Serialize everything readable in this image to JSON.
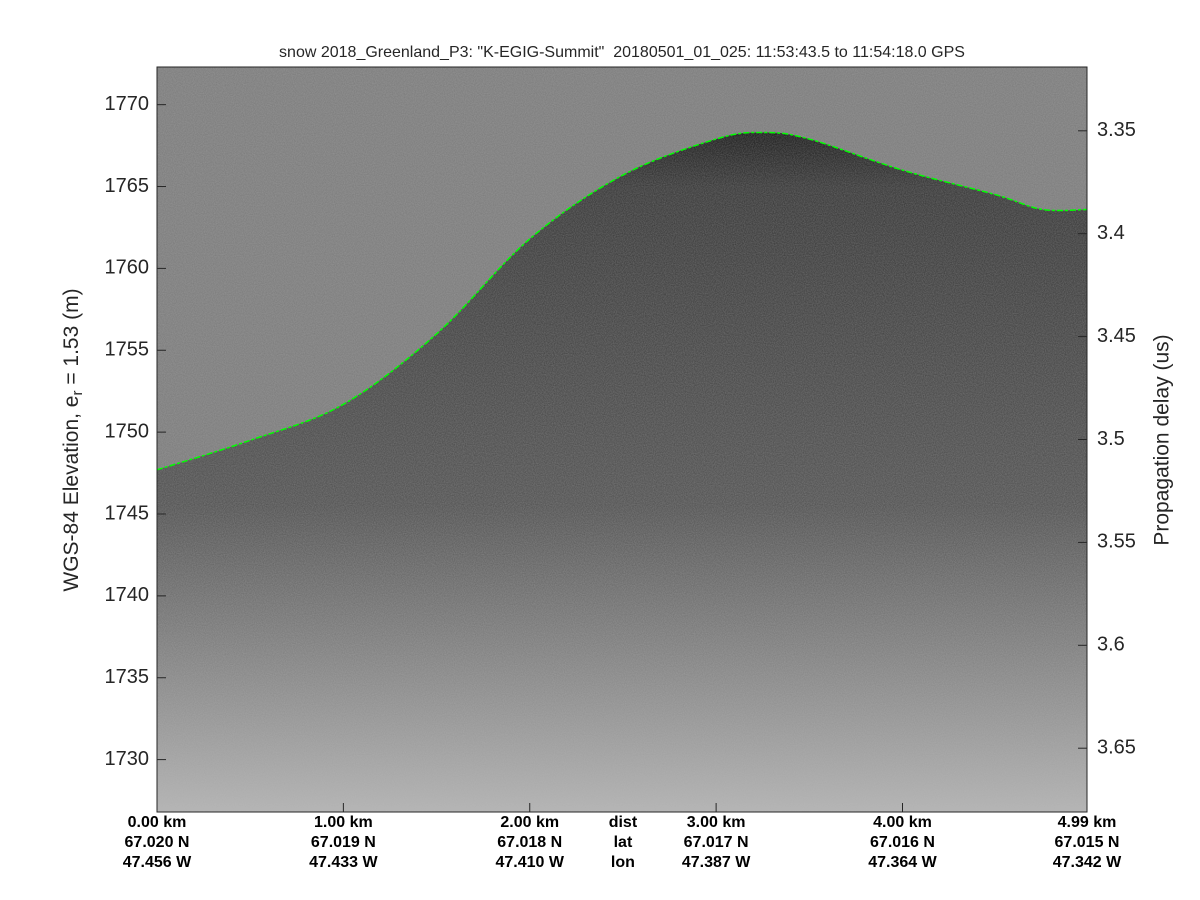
{
  "chart_data": {
    "type": "echogram",
    "title": "snow 2018_Greenland_P3: \"K-EGIG-Summit\"  20180501_01_025: 11:53:43.5 to 11:54:18.0 GPS",
    "y_label_prefix": "WGS-84 Elevation, e",
    "y_label_subscript": "r",
    "y_label_suffix": " = 1.53 (m)",
    "y2_label": "Propagation delay (us)",
    "xlim": [
      0,
      4.99
    ],
    "ylim": [
      1726.8,
      1772.3
    ],
    "yticks": [
      1730,
      1735,
      1740,
      1745,
      1750,
      1755,
      1760,
      1765,
      1770
    ],
    "y2lim": [
      3.319,
      3.681
    ],
    "y2_reversed": true,
    "y2ticks": [
      3.35,
      3.4,
      3.45,
      3.5,
      3.55,
      3.6,
      3.65
    ],
    "xticks": [
      {
        "value": 0,
        "label": "0.00 km"
      },
      {
        "value": 1,
        "label": "1.00 km"
      },
      {
        "value": 2,
        "label": "2.00 km"
      },
      {
        "value": 3,
        "label": "3.00 km"
      },
      {
        "value": 4,
        "label": "4.00 km"
      },
      {
        "value": 4.99,
        "label": "4.99 km"
      }
    ],
    "lat_labels": [
      "67.020 N",
      "67.019 N",
      "67.018 N",
      "67.017 N",
      "67.016 N",
      "67.015 N"
    ],
    "lon_labels": [
      "47.456 W",
      "47.433 W",
      "47.410 W",
      "47.387 W",
      "47.364 W",
      "47.342 W"
    ],
    "row_labels": [
      "dist",
      "lat",
      "lon"
    ],
    "x": [
      0,
      0.5,
      1.0,
      1.5,
      2.0,
      2.5,
      3.0,
      3.25,
      3.5,
      4.0,
      4.5,
      4.75,
      4.99
    ],
    "series": [
      {
        "color": "#00ff00",
        "values": [
          1747.7,
          1749.5,
          1751.7,
          1756,
          1761.8,
          1765.7,
          1767.9,
          1768.3,
          1767.9,
          1766,
          1764.5,
          1763.6,
          1763.6
        ]
      }
    ]
  }
}
